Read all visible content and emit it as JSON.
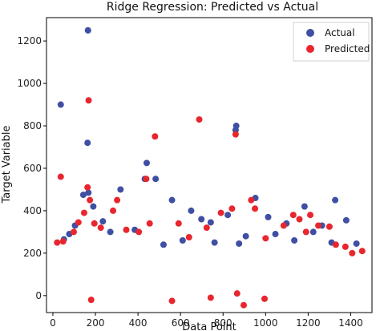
{
  "chart_data": {
    "type": "scatter",
    "title": "Ridge Regression: Predicted vs Actual",
    "xlabel": "Data Point",
    "ylabel": "Target Variable",
    "xlim": [
      -30,
      1500
    ],
    "ylim": [
      -80,
      1310
    ],
    "xticks": [
      0,
      200,
      400,
      600,
      800,
      1000,
      1200,
      1400
    ],
    "yticks": [
      0,
      200,
      400,
      600,
      800,
      1000,
      1200
    ],
    "grid": false,
    "legend": "top-right",
    "series": [
      {
        "name": "Actual",
        "color": "#3f4fa3",
        "points": [
          [
            37,
            900
          ],
          [
            165,
            1250
          ],
          [
            163,
            720
          ],
          [
            143,
            475
          ],
          [
            167,
            485
          ],
          [
            441,
            625
          ],
          [
            432,
            550
          ],
          [
            483,
            550
          ],
          [
            318,
            500
          ],
          [
            560,
            450
          ],
          [
            650,
            400
          ],
          [
            742,
            345
          ],
          [
            822,
            380
          ],
          [
            859,
            780
          ],
          [
            862,
            800
          ],
          [
            952,
            460
          ],
          [
            1012,
            370
          ],
          [
            1098,
            340
          ],
          [
            1183,
            420
          ],
          [
            1327,
            450
          ],
          [
            1379,
            355
          ],
          [
            1427,
            245
          ],
          [
            1265,
            330
          ],
          [
            1135,
            260
          ],
          [
            907,
            280
          ],
          [
            698,
            360
          ],
          [
            235,
            350
          ],
          [
            77,
            290
          ],
          [
            52,
            265
          ],
          [
            104,
            330
          ],
          [
            190,
            420
          ],
          [
            270,
            300
          ],
          [
            385,
            310
          ],
          [
            520,
            240
          ],
          [
            610,
            260
          ],
          [
            760,
            250
          ],
          [
            875,
            245
          ],
          [
            1046,
            290
          ],
          [
            1224,
            300
          ],
          [
            1310,
            250
          ]
        ]
      },
      {
        "name": "Predicted",
        "color": "#e8262e",
        "points": [
          [
            37,
            560
          ],
          [
            168,
            920
          ],
          [
            163,
            510
          ],
          [
            147,
            390
          ],
          [
            174,
            450
          ],
          [
            439,
            550
          ],
          [
            480,
            750
          ],
          [
            688,
            830
          ],
          [
            859,
            760
          ],
          [
            932,
            450
          ],
          [
            950,
            410
          ],
          [
            842,
            410
          ],
          [
            790,
            390
          ],
          [
            723,
            320
          ],
          [
            640,
            275
          ],
          [
            591,
            340
          ],
          [
            455,
            340
          ],
          [
            404,
            300
          ],
          [
            345,
            310
          ],
          [
            302,
            450
          ],
          [
            283,
            400
          ],
          [
            225,
            320
          ],
          [
            195,
            340
          ],
          [
            120,
            345
          ],
          [
            98,
            300
          ],
          [
            48,
            255
          ],
          [
            20,
            250
          ],
          [
            1000,
            270
          ],
          [
            1085,
            330
          ],
          [
            1130,
            380
          ],
          [
            1159,
            360
          ],
          [
            1190,
            300
          ],
          [
            1248,
            330
          ],
          [
            1300,
            325
          ],
          [
            1375,
            230
          ],
          [
            1454,
            210
          ],
          [
            1407,
            200
          ],
          [
            1330,
            240
          ],
          [
            1210,
            380
          ],
          [
            866,
            10
          ],
          [
            897,
            -45
          ],
          [
            560,
            -25
          ],
          [
            180,
            -20
          ],
          [
            995,
            -15
          ],
          [
            742,
            -10
          ]
        ]
      }
    ]
  }
}
